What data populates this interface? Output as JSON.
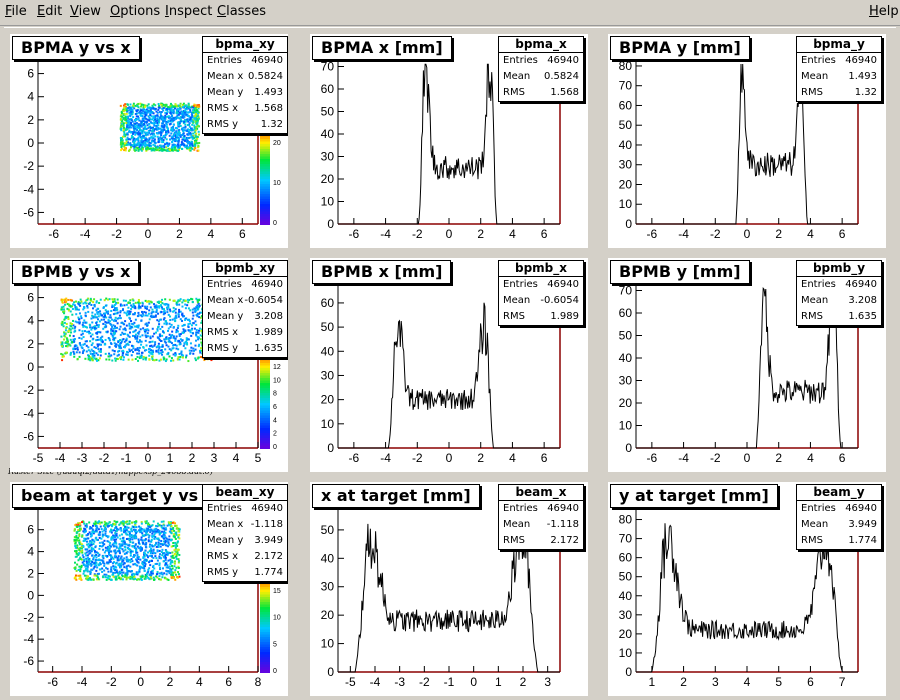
{
  "menubar": {
    "items": [
      {
        "label": "File",
        "u": "F",
        "rest": "ile"
      },
      {
        "label": "Edit",
        "u": "E",
        "rest": "dit"
      },
      {
        "label": "View",
        "u": "V",
        "rest": "iew"
      },
      {
        "label": "Options",
        "u": "O",
        "rest": "ptions"
      },
      {
        "label": "Inspect",
        "u": "I",
        "rest": "nspect"
      },
      {
        "label": "Classes",
        "u": "C",
        "rest": "lasses"
      }
    ],
    "help": {
      "u": "H",
      "rest": "elp"
    }
  },
  "divider_caption": "Raster Size (/adaql2/data1/happexsp_24688.dat.0)",
  "pads": [
    {
      "kind": "h2",
      "title": "BPMA y vs x",
      "stats": {
        "name": "bpma_xy",
        "entries": "46940",
        "mean_x": "0.5824",
        "mean_y": "1.493",
        "rms_x": "1.568",
        "rms_y": "1.32"
      },
      "x_ticks": [
        "-6",
        "-4",
        "-2",
        "0",
        "2",
        "4",
        "6"
      ],
      "y_ticks": [
        "-6",
        "-4",
        "-2",
        "0",
        "2",
        "4",
        "6"
      ],
      "palette_ticks": [
        "0",
        "10",
        "20"
      ],
      "xlim": [
        -7,
        7
      ],
      "ylim": [
        -7,
        7
      ],
      "rect": [
        -1.8,
        -0.6,
        3.2,
        3.5
      ]
    },
    {
      "kind": "h1",
      "title": "BPMA x [mm]",
      "stats": {
        "name": "bpma_x",
        "entries": "46940",
        "mean": "0.5824",
        "rms": "1.568"
      },
      "x_ticks": [
        "-6",
        "-4",
        "-2",
        "0",
        "2",
        "4",
        "6"
      ],
      "y_ticks": [
        "0",
        "10",
        "20",
        "30",
        "40",
        "50",
        "60",
        "70"
      ],
      "xlim": [
        -7,
        7
      ],
      "ylim": [
        0,
        72
      ],
      "lo": -1.9,
      "hi": 3.0,
      "peak_l": 68,
      "peak_r": 69,
      "floor": 25
    },
    {
      "kind": "h1",
      "title": "BPMA y [mm]",
      "stats": {
        "name": "bpma_y",
        "entries": "46940",
        "mean": "1.493",
        "rms": "1.32"
      },
      "x_ticks": [
        "-6",
        "-4",
        "-2",
        "0",
        "2",
        "4",
        "6"
      ],
      "y_ticks": [
        "0",
        "10",
        "20",
        "30",
        "40",
        "50",
        "60",
        "70",
        "80"
      ],
      "xlim": [
        -7,
        7
      ],
      "ylim": [
        0,
        82
      ],
      "lo": -0.7,
      "hi": 3.8,
      "peak_l": 74,
      "peak_r": 75,
      "floor": 30
    },
    {
      "kind": "h2",
      "title": "BPMB y vs x",
      "stats": {
        "name": "bpmb_xy",
        "entries": "46940",
        "mean_x": "-0.6054",
        "mean_y": "3.208",
        "rms_x": "1.989",
        "rms_y": "1.635"
      },
      "x_ticks": [
        "-5",
        "-4",
        "-3",
        "-2",
        "-1",
        "0",
        "1",
        "2",
        "3",
        "4",
        "5"
      ],
      "y_ticks": [
        "-6",
        "-4",
        "-2",
        "0",
        "2",
        "4",
        "6"
      ],
      "palette_ticks": [
        "0",
        "2",
        "4",
        "6",
        "8",
        "10",
        "12"
      ],
      "xlim": [
        -5,
        5
      ],
      "ylim": [
        -7,
        7
      ],
      "rect": [
        -4.0,
        0.6,
        2.9,
        6.0
      ]
    },
    {
      "kind": "h1",
      "title": "BPMB x [mm]",
      "stats": {
        "name": "bpmb_x",
        "entries": "46940",
        "mean": "-0.6054",
        "rms": "1.989"
      },
      "x_ticks": [
        "-6",
        "-4",
        "-2",
        "0",
        "2",
        "4",
        "6"
      ],
      "y_ticks": [
        "0",
        "10",
        "20",
        "30",
        "40",
        "50",
        "60"
      ],
      "xlim": [
        -7,
        7
      ],
      "ylim": [
        0,
        67
      ],
      "lo": -3.8,
      "hi": 2.8,
      "peak_l": 50,
      "peak_r": 50,
      "floor": 20
    },
    {
      "kind": "h1",
      "title": "BPMB y [mm]",
      "stats": {
        "name": "bpmb_y",
        "entries": "46940",
        "mean": "3.208",
        "rms": "1.635"
      },
      "x_ticks": [
        "-6",
        "-4",
        "-2",
        "0",
        "2",
        "4",
        "6"
      ],
      "y_ticks": [
        "0",
        "10",
        "20",
        "30",
        "40",
        "50",
        "60",
        "70"
      ],
      "xlim": [
        -7,
        7
      ],
      "ylim": [
        0,
        72
      ],
      "lo": 0.6,
      "hi": 5.9,
      "peak_l": 66,
      "peak_r": 68,
      "floor": 25
    },
    {
      "kind": "h2",
      "title": "beam at target y vs x",
      "stats": {
        "name": "beam_xy",
        "entries": "46940",
        "mean_x": "-1.118",
        "mean_y": "3.949",
        "rms_x": "2.172",
        "rms_y": "1.774"
      },
      "x_ticks": [
        "-6",
        "-4",
        "-2",
        "0",
        "2",
        "4",
        "6",
        "8"
      ],
      "y_ticks": [
        "-6",
        "-4",
        "-2",
        "0",
        "2",
        "4",
        "6"
      ],
      "palette_ticks": [
        "0",
        "5",
        "10",
        "15"
      ],
      "xlim": [
        -7,
        8
      ],
      "ylim": [
        -7,
        7.8
      ],
      "rect": [
        -4.6,
        1.5,
        2.6,
        6.9
      ]
    },
    {
      "kind": "h1",
      "title": "x at target [mm]",
      "stats": {
        "name": "beam_x",
        "entries": "46940",
        "mean": "-1.118",
        "rms": "2.172"
      },
      "x_ticks": [
        "-5",
        "-4",
        "-3",
        "-2",
        "-1",
        "0",
        "1",
        "2",
        "3"
      ],
      "y_ticks": [
        "0",
        "10",
        "20",
        "30",
        "40",
        "50"
      ],
      "xlim": [
        -5.5,
        3.5
      ],
      "ylim": [
        0,
        57
      ],
      "lo": -4.8,
      "hi": 2.6,
      "peak_l": 46,
      "peak_r": 47,
      "floor": 18
    },
    {
      "kind": "h1",
      "title": "y at target [mm]",
      "stats": {
        "name": "beam_y",
        "entries": "46940",
        "mean": "3.949",
        "rms": "1.774"
      },
      "x_ticks": [
        "1",
        "2",
        "3",
        "4",
        "5",
        "6",
        "7"
      ],
      "y_ticks": [
        "0",
        "10",
        "20",
        "30",
        "40",
        "50",
        "60",
        "70",
        "80"
      ],
      "xlim": [
        0.5,
        7.5
      ],
      "ylim": [
        0,
        85
      ],
      "lo": 1.0,
      "hi": 7.0,
      "peak_l": 70,
      "peak_r": 68,
      "floor": 22
    }
  ],
  "colors": {
    "axis": "#000000",
    "frame_right": "#8b0000",
    "h1_line": "#000000"
  }
}
